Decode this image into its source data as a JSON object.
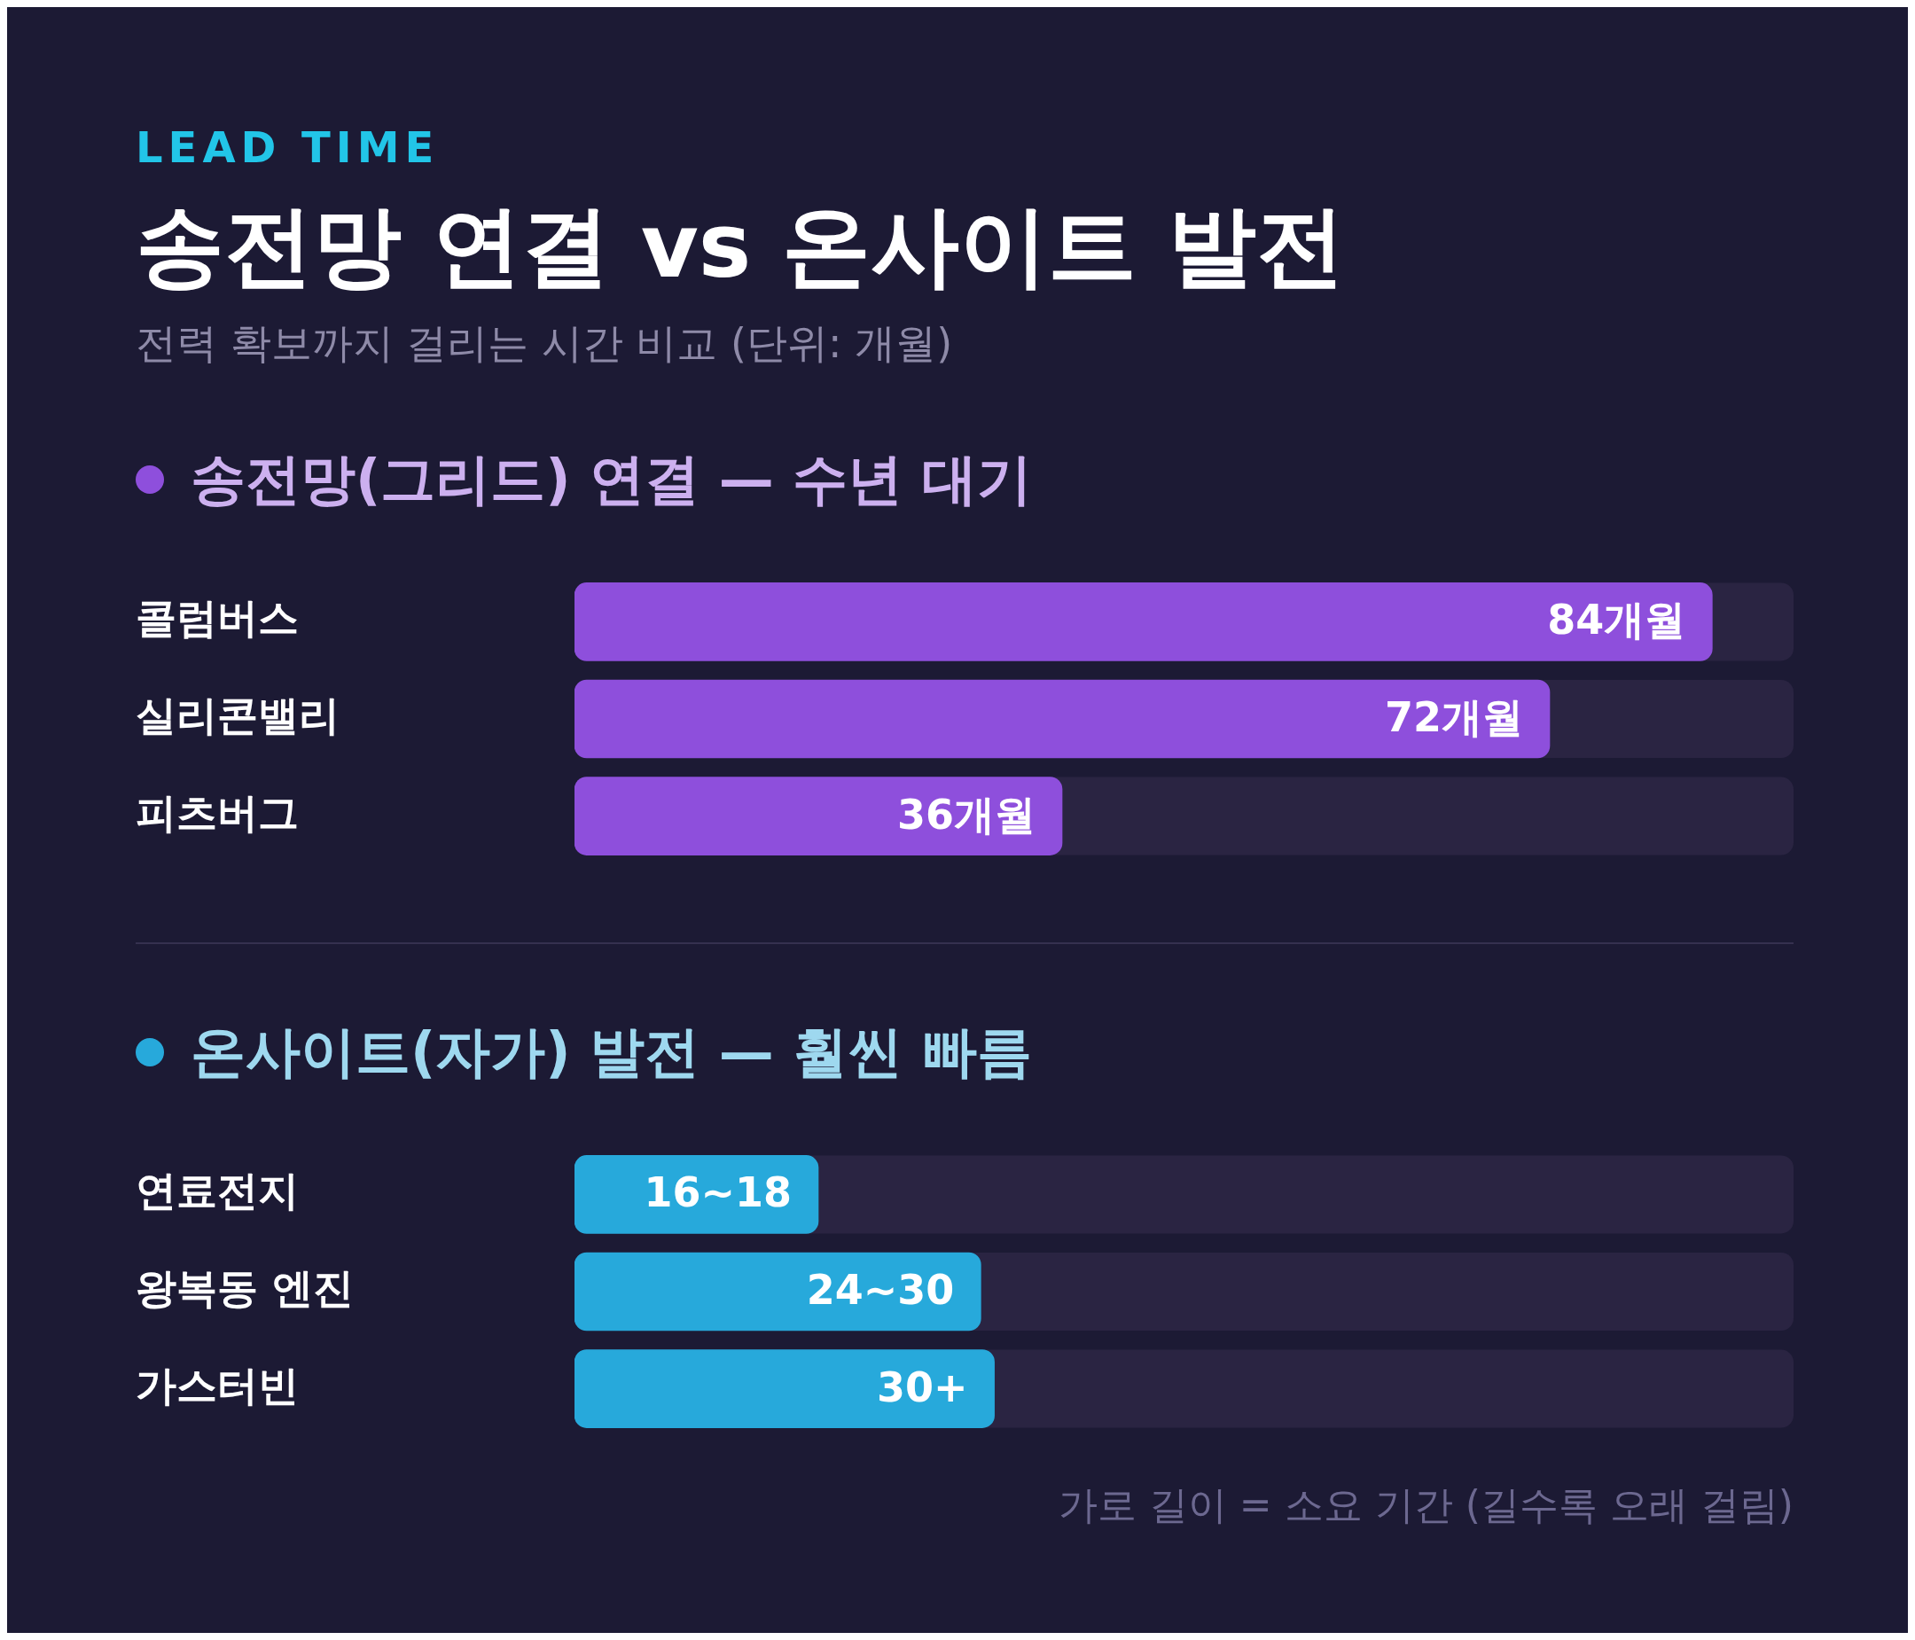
{
  "chart_data": [
    {
      "type": "bar",
      "orientation": "horizontal",
      "title": "송전망 연결 vs 온사이트 발전",
      "subtitle": "전력 확보까지 걸리는 시간 비교 (단위: 개월)",
      "annotations": [
        "LEAD TIME"
      ],
      "categories": [
        "콜럼버스",
        "실리콘밸리",
        "피츠버그"
      ],
      "xlim": [
        0,
        90
      ],
      "legend": "top left",
      "series": [
        {
          "name": "송전망(그리드) 연결 — 수년 대기",
          "color": "#8e4fdc",
          "values": [
            84,
            72,
            36
          ],
          "value_labels": [
            "84개월",
            "72개월",
            "36개월"
          ]
        }
      ]
    },
    {
      "type": "bar",
      "orientation": "horizontal",
      "annotations": [
        "가로 길이 = 소요 기간 (길수록 오래 걸림)"
      ],
      "categories": [
        "연료전지",
        "왕복동 엔진",
        "가스터빈"
      ],
      "xlim": [
        0,
        90
      ],
      "legend": "top left",
      "series": [
        {
          "name": "온사이트(자가) 발전 — 훨씬 빠름",
          "color": "#27a9db",
          "values": [
            18,
            30,
            31
          ],
          "value_labels": [
            "16~18",
            "24~30",
            "30+"
          ]
        }
      ]
    }
  ]
}
